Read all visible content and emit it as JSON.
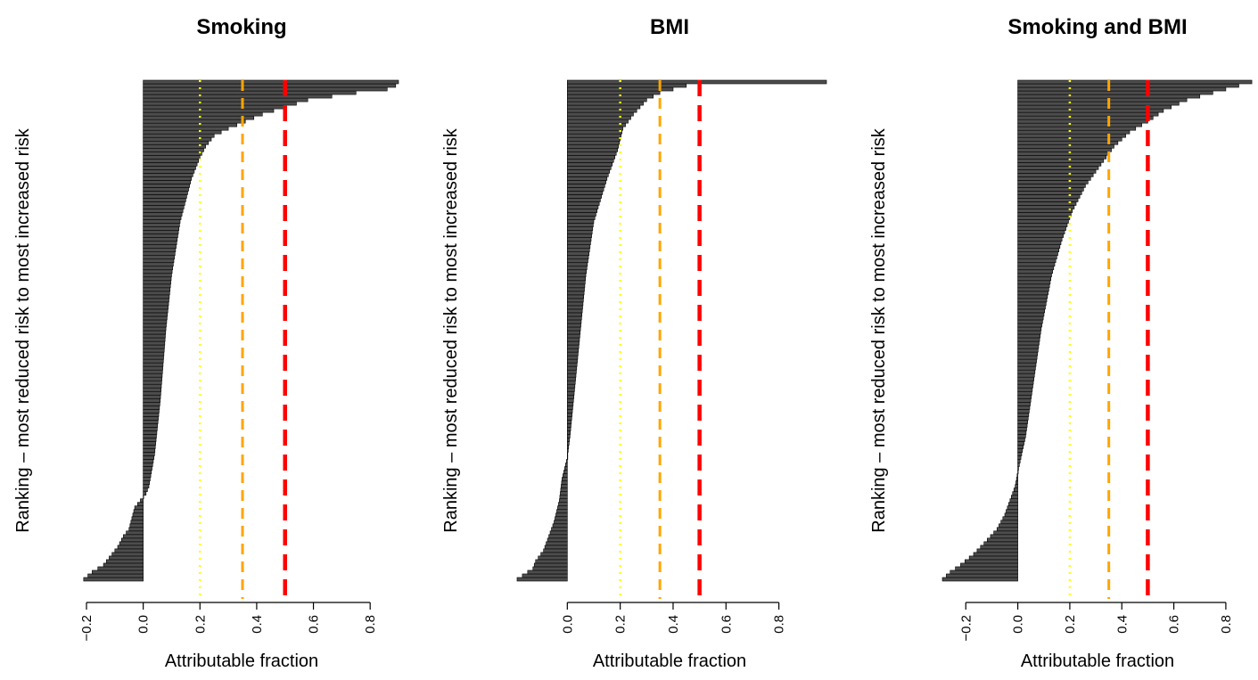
{
  "chart_data": [
    {
      "type": "bar",
      "orientation": "horizontal",
      "title": "Smoking",
      "xlabel": "Attributable fraction",
      "ylabel": "Ranking – most reduced risk to most increased risk",
      "xlim": [
        -0.2,
        0.9
      ],
      "xticks": [
        -0.2,
        0.0,
        0.2,
        0.4,
        0.6,
        0.8
      ],
      "xtick_labels": [
        "−0.2",
        "0.0",
        "0.2",
        "0.4",
        "0.6",
        "0.8"
      ],
      "n_bars": 140,
      "values_sorted_anchors": [
        [
          0,
          -0.21
        ],
        [
          2,
          -0.18
        ],
        [
          4,
          -0.14
        ],
        [
          6,
          -0.12
        ],
        [
          9,
          -0.09
        ],
        [
          12,
          -0.07
        ],
        [
          14,
          -0.05
        ],
        [
          17,
          -0.04
        ],
        [
          20,
          -0.03
        ],
        [
          22,
          -0.01
        ],
        [
          24,
          0.01
        ],
        [
          26,
          0.02
        ],
        [
          35,
          0.04
        ],
        [
          50,
          0.06
        ],
        [
          70,
          0.08
        ],
        [
          85,
          0.1
        ],
        [
          100,
          0.13
        ],
        [
          112,
          0.17
        ],
        [
          118,
          0.2
        ],
        [
          121,
          0.22
        ],
        [
          124,
          0.25
        ],
        [
          126,
          0.3
        ],
        [
          128,
          0.36
        ],
        [
          130,
          0.42
        ],
        [
          132,
          0.5
        ],
        [
          134,
          0.58
        ],
        [
          136,
          0.75
        ],
        [
          137,
          0.86
        ],
        [
          138,
          0.89
        ],
        [
          139,
          0.9
        ]
      ],
      "reference_lines": [
        {
          "value": 0.2,
          "color": "#FFFF00",
          "style": "dotted"
        },
        {
          "value": 0.35,
          "color": "#FFA500",
          "style": "dashed"
        },
        {
          "value": 0.5,
          "color": "#FF0000",
          "style": "dashed"
        }
      ],
      "bar_color": "#4D4D4D",
      "grid": false,
      "legend": null
    },
    {
      "type": "bar",
      "orientation": "horizontal",
      "title": "BMI",
      "xlabel": "Attributable fraction",
      "ylabel": "Ranking – most reduced risk to most increased risk",
      "xlim": [
        -0.2,
        0.98
      ],
      "xticks": [
        0.0,
        0.2,
        0.4,
        0.6,
        0.8
      ],
      "xtick_labels": [
        "0.0",
        "0.2",
        "0.4",
        "0.6",
        "0.8"
      ],
      "n_bars": 140,
      "values_sorted_anchors": [
        [
          0,
          -0.19
        ],
        [
          3,
          -0.13
        ],
        [
          5,
          -0.12
        ],
        [
          8,
          -0.09
        ],
        [
          12,
          -0.07
        ],
        [
          16,
          -0.05
        ],
        [
          22,
          -0.03
        ],
        [
          28,
          -0.02
        ],
        [
          34,
          0.0
        ],
        [
          40,
          0.01
        ],
        [
          55,
          0.03
        ],
        [
          70,
          0.05
        ],
        [
          85,
          0.07
        ],
        [
          100,
          0.1
        ],
        [
          112,
          0.15
        ],
        [
          120,
          0.19
        ],
        [
          126,
          0.21
        ],
        [
          130,
          0.25
        ],
        [
          134,
          0.3
        ],
        [
          136,
          0.35
        ],
        [
          137,
          0.4
        ],
        [
          138,
          0.45
        ],
        [
          139,
          0.98
        ]
      ],
      "reference_lines": [
        {
          "value": 0.2,
          "color": "#FFFF00",
          "style": "dotted"
        },
        {
          "value": 0.35,
          "color": "#FFA500",
          "style": "dashed"
        },
        {
          "value": 0.5,
          "color": "#FF0000",
          "style": "dashed"
        }
      ],
      "bar_color": "#4D4D4D",
      "grid": false,
      "legend": null
    },
    {
      "type": "bar",
      "orientation": "horizontal",
      "title": "Smoking and BMI",
      "xlabel": "Attributable fraction",
      "ylabel": "Ranking – most reduced risk to most increased risk",
      "xlim": [
        -0.29,
        0.91
      ],
      "xticks": [
        -0.2,
        0.0,
        0.2,
        0.4,
        0.6,
        0.8
      ],
      "xtick_labels": [
        "−0.2",
        "0.0",
        "0.2",
        "0.4",
        "0.6",
        "0.8"
      ],
      "n_bars": 140,
      "values_sorted_anchors": [
        [
          0,
          -0.29
        ],
        [
          2,
          -0.26
        ],
        [
          4,
          -0.22
        ],
        [
          7,
          -0.17
        ],
        [
          10,
          -0.13
        ],
        [
          14,
          -0.08
        ],
        [
          18,
          -0.05
        ],
        [
          22,
          -0.03
        ],
        [
          26,
          -0.01
        ],
        [
          30,
          0.0
        ],
        [
          40,
          0.03
        ],
        [
          55,
          0.06
        ],
        [
          70,
          0.09
        ],
        [
          85,
          0.13
        ],
        [
          95,
          0.17
        ],
        [
          103,
          0.21
        ],
        [
          110,
          0.26
        ],
        [
          116,
          0.32
        ],
        [
          121,
          0.37
        ],
        [
          125,
          0.43
        ],
        [
          128,
          0.5
        ],
        [
          131,
          0.56
        ],
        [
          134,
          0.65
        ],
        [
          136,
          0.75
        ],
        [
          138,
          0.85
        ],
        [
          139,
          0.9
        ]
      ],
      "reference_lines": [
        {
          "value": 0.2,
          "color": "#FFFF00",
          "style": "dotted"
        },
        {
          "value": 0.35,
          "color": "#FFA500",
          "style": "dashed"
        },
        {
          "value": 0.5,
          "color": "#FF0000",
          "style": "dashed"
        }
      ],
      "bar_color": "#4D4D4D",
      "grid": false,
      "legend": null
    }
  ]
}
